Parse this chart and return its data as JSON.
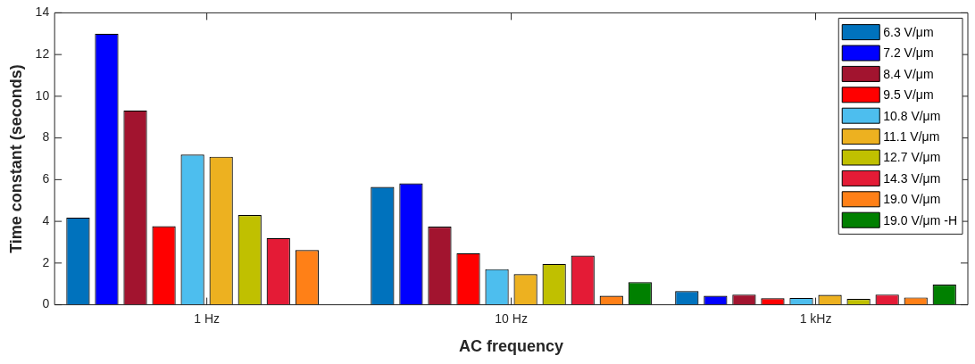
{
  "chart_data": {
    "type": "bar",
    "xlabel": "AC frequency",
    "ylabel": "Time constant (seconds)",
    "categories": [
      "1 Hz",
      "10 Hz",
      "1 kHz"
    ],
    "series": [
      {
        "name": "6.3 V/μm",
        "color": "#0072bd",
        "values": [
          4.18,
          5.65,
          0.66
        ]
      },
      {
        "name": "7.2 V/μm",
        "color": "#0000ff",
        "values": [
          13.0,
          5.82,
          0.43
        ]
      },
      {
        "name": "8.4 V/μm",
        "color": "#a2142f",
        "values": [
          9.32,
          3.75,
          0.49
        ]
      },
      {
        "name": "9.5 V/μm",
        "color": "#ff0000",
        "values": [
          3.77,
          2.47,
          0.31
        ]
      },
      {
        "name": "10.8 V/μm",
        "color": "#4dbeee",
        "values": [
          7.2,
          1.71,
          0.33
        ]
      },
      {
        "name": "11.1 V/μm",
        "color": "#edb120",
        "values": [
          7.1,
          1.47,
          0.47
        ]
      },
      {
        "name": "12.7 V/μm",
        "color": "#c0c000",
        "values": [
          4.3,
          1.96,
          0.28
        ]
      },
      {
        "name": "14.3 V/μm",
        "color": "#e41b36",
        "values": [
          3.2,
          2.36,
          0.49
        ]
      },
      {
        "name": "19.0 V/μm",
        "color": "#ff8017",
        "values": [
          2.62,
          0.43,
          0.35
        ]
      },
      {
        "name": "19.0 V/μm -H",
        "color": "#008000",
        "values": [
          0,
          1.08,
          0.97
        ]
      }
    ],
    "ylim": [
      0,
      14
    ],
    "yticks": [
      0,
      2,
      4,
      6,
      8,
      10,
      12,
      14
    ],
    "grid": false,
    "legend": "top right"
  }
}
